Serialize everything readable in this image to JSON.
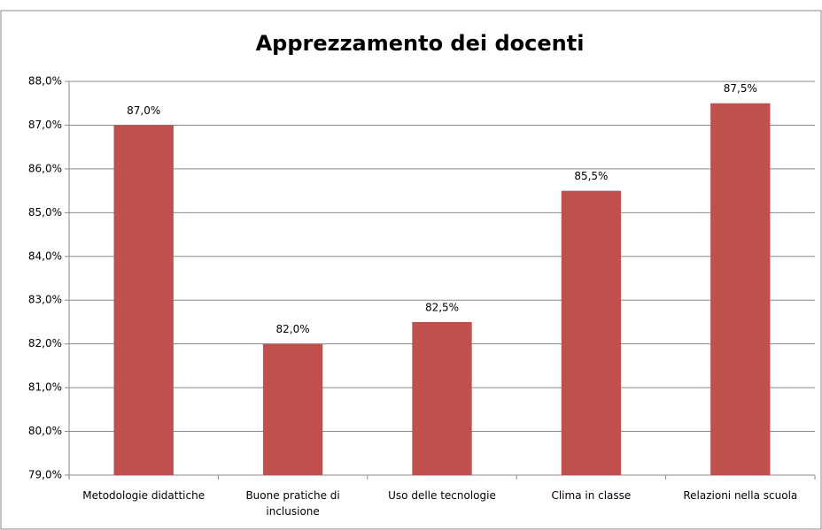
{
  "chart_data": {
    "type": "bar",
    "title": "Apprezzamento dei docenti",
    "categories": [
      "Metodologie didattiche",
      "Buone pratiche di inclusione",
      "Uso delle tecnologie",
      "Clima in classe",
      "Relazioni nella scuola"
    ],
    "values": [
      87.0,
      82.0,
      82.5,
      85.5,
      87.5
    ],
    "value_labels": [
      "87,0%",
      "82,0%",
      "82,5%",
      "85,5%",
      "87,5%"
    ],
    "color": "#c0504d",
    "ylim": [
      79,
      88
    ],
    "yticks": [
      {
        "value": 79,
        "label": "79,0%"
      },
      {
        "value": 80,
        "label": "80,0%"
      },
      {
        "value": 81,
        "label": "81,0%"
      },
      {
        "value": 82,
        "label": "82,0%"
      },
      {
        "value": 83,
        "label": "83,0%"
      },
      {
        "value": 84,
        "label": "84,0%"
      },
      {
        "value": 85,
        "label": "85,0%"
      },
      {
        "value": 86,
        "label": "86,0%"
      },
      {
        "value": 87,
        "label": "87,0%"
      },
      {
        "value": 88,
        "label": "88,0%"
      }
    ],
    "grid": true
  }
}
